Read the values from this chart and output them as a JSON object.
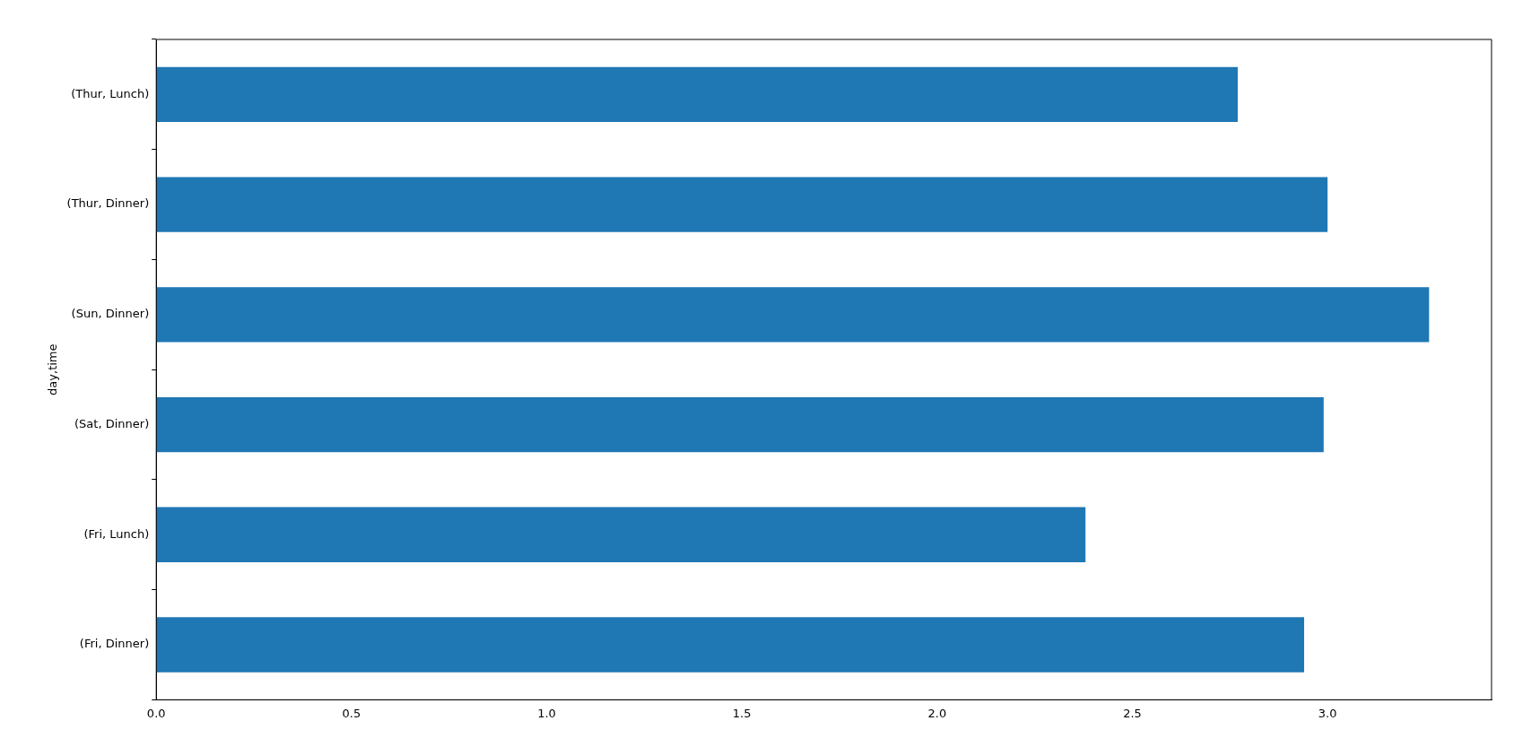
{
  "chart_data": {
    "type": "bar",
    "orientation": "horizontal",
    "ylabel": "day,time",
    "categories": [
      "(Thur, Lunch)",
      "(Thur, Dinner)",
      "(Sun, Dinner)",
      "(Sat, Dinner)",
      "(Fri, Lunch)",
      "(Fri, Dinner)"
    ],
    "values": [
      2.77,
      3.0,
      3.26,
      2.99,
      2.38,
      2.94
    ],
    "color": "#1f77b4",
    "xlim": [
      0,
      3.42
    ],
    "xticks": [
      {
        "value": 0,
        "label": "0.0"
      },
      0.5,
      {
        "value": 1,
        "label": "1.0"
      },
      1.5,
      {
        "value": 2,
        "label": "2.0"
      },
      2.5,
      {
        "value": 3,
        "label": "3.0"
      }
    ],
    "legend": false
  }
}
